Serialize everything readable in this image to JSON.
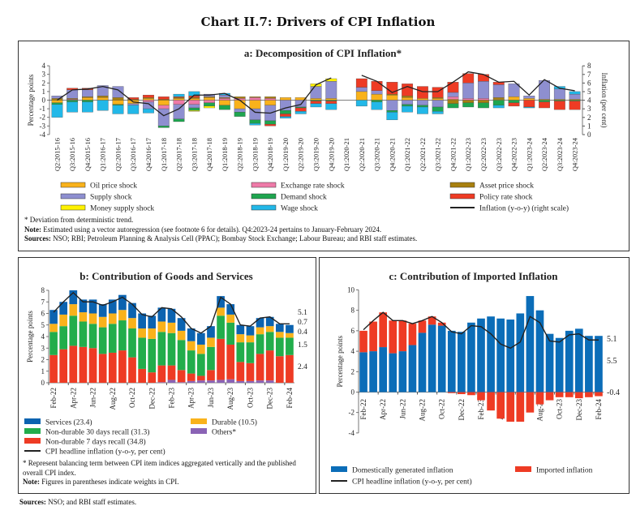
{
  "title": "Chart II.7: Drivers of CPI Inflation",
  "colors": {
    "oil": "#f9b21b",
    "fx": "#ee7aa8",
    "asset": "#a8800f",
    "supply": "#8e8fd0",
    "demand": "#1ea54f",
    "policy": "#ee3b24",
    "money": "#fff200",
    "wage": "#22b8e8",
    "services": "#0b63b0",
    "nd30": "#22ad4b",
    "nd7": "#ee3b24",
    "durable": "#f9b21b",
    "others": "#8a63b5",
    "domestic": "#0b6db8",
    "imported": "#ee3b24",
    "line": "#222222"
  },
  "chart_data": [
    {
      "type": "bar",
      "title": "a: Decomposition of CPI Inflation*",
      "ylabel": "Percentage points",
      "y2label": "Inflation (per cent)",
      "ylim": [
        -4,
        4
      ],
      "y2lim": [
        0,
        8
      ],
      "categories": [
        "Q2:2015-16",
        "Q3:2015-16",
        "Q4:2015-16",
        "Q1:2016-17",
        "Q2:2016-17",
        "Q3:2016-17",
        "Q4:2016-17",
        "Q1:2017-18",
        "Q2:2017-18",
        "Q3:2017-18",
        "Q4:2017-18",
        "Q1:2018-19",
        "Q2:2018-19",
        "Q3:2018-19",
        "Q4:2018-19",
        "Q1:2019-20",
        "Q2:2019-20",
        "Q3:2019-20",
        "Q4:2019-20",
        "Q1:2020-21",
        "Q2:2020-21",
        "Q3:2020-21",
        "Q4:2020-21",
        "Q1:2021-22",
        "Q2:2021-22",
        "Q3:2021-22",
        "Q4:2021-22",
        "Q1:2022-23",
        "Q2:2022-23",
        "Q3:2022-23",
        "Q4:2022-23",
        "Q1:2023-24",
        "Q2:2023-24",
        "Q3:2023-24",
        "Q4:2023-24"
      ],
      "series_keys": [
        "oil",
        "fx",
        "asset",
        "supply",
        "demand",
        "policy",
        "money",
        "wage"
      ],
      "legend": [
        {
          "key": "oil",
          "label": "Oil price shock"
        },
        {
          "key": "fx",
          "label": "Exchange rate shock"
        },
        {
          "key": "asset",
          "label": "Asset price shock"
        },
        {
          "key": "supply",
          "label": "Supply shock"
        },
        {
          "key": "demand",
          "label": "Demand shock"
        },
        {
          "key": "policy",
          "label": "Policy rate shock"
        },
        {
          "key": "money",
          "label": "Money supply shock"
        },
        {
          "key": "wage",
          "label": "Wage shock"
        },
        {
          "key": "line",
          "label": "Inflation (y-o-y) (right scale)"
        }
      ],
      "values": [
        [
          -0.3,
          0,
          0.2,
          0.3,
          -0.2,
          0,
          0,
          -1.5
        ],
        [
          0,
          0.1,
          0.1,
          1.0,
          -0.2,
          0.2,
          0,
          -1.2
        ],
        [
          0.3,
          0,
          0.1,
          0.8,
          -0.2,
          0.2,
          0,
          -1.2
        ],
        [
          0.3,
          0,
          0.2,
          1.2,
          0,
          0,
          0,
          -1.2
        ],
        [
          -0.5,
          0,
          0.3,
          1.3,
          -0.1,
          0,
          0,
          -1.0
        ],
        [
          -0.4,
          0,
          0.1,
          -0.2,
          0,
          0.2,
          0,
          -1.0
        ],
        [
          0.2,
          -0.2,
          0.1,
          -0.8,
          0,
          0.3,
          0,
          -0.5
        ],
        [
          -0.6,
          -0.4,
          0.1,
          -2.0,
          -0.2,
          0.3,
          0,
          0
        ],
        [
          0.2,
          -0.5,
          0.1,
          -1.7,
          -0.3,
          0.1,
          0,
          0.3
        ],
        [
          0.2,
          -0.5,
          0.1,
          -0.4,
          -0.3,
          0.2,
          -0.1,
          0.5
        ],
        [
          0.3,
          -0.3,
          0.1,
          0.3,
          -0.4,
          0,
          -0.2,
          0
        ],
        [
          -0.6,
          0.2,
          0.1,
          0.3,
          -0.5,
          0,
          0,
          0.2
        ],
        [
          -1.0,
          0.2,
          0.2,
          -0.4,
          -0.5,
          0,
          0,
          0
        ],
        [
          -1.0,
          0.3,
          0.1,
          -1.3,
          -0.4,
          0,
          0,
          -0.2
        ],
        [
          -0.6,
          0.2,
          0.2,
          -1.8,
          -0.4,
          -0.2,
          0,
          0
        ],
        [
          0.3,
          0,
          0,
          -1.2,
          -0.4,
          -0.3,
          0,
          -0.2
        ],
        [
          0.3,
          0,
          0,
          -0.8,
          -0.1,
          -0.4,
          0,
          -0.3
        ],
        [
          0.2,
          0,
          0,
          1.4,
          -0.1,
          -0.3,
          0.3,
          -0.4
        ],
        [
          0.2,
          0,
          0,
          2.0,
          -0.1,
          -0.3,
          0.3,
          -0.7
        ],
        null,
        [
          1.0,
          0,
          0,
          0.5,
          0,
          1.0,
          0,
          -0.7
        ],
        [
          0.7,
          0,
          0,
          0.4,
          -0.2,
          1.1,
          0,
          -0.9
        ],
        [
          0.6,
          0,
          0.1,
          -1.2,
          -0.2,
          1.4,
          0,
          -0.9
        ],
        [
          0.3,
          0,
          0.2,
          -0.5,
          -0.2,
          1.4,
          0,
          -0.7
        ],
        [
          0.2,
          0,
          0,
          -0.6,
          -0.2,
          1.4,
          0,
          -0.8
        ],
        [
          0.2,
          0,
          0.1,
          -0.8,
          -0.5,
          1.2,
          0,
          -0.3
        ],
        [
          0.1,
          0.3,
          -0.4,
          0.5,
          -0.5,
          1.2,
          0,
          0
        ],
        [
          0,
          0.2,
          -0.3,
          1.8,
          -0.5,
          1.1,
          0,
          0
        ],
        [
          0,
          0.2,
          -0.3,
          2.0,
          -0.6,
          0.8,
          0,
          0
        ],
        [
          0.1,
          0,
          0.2,
          1.5,
          -0.6,
          0.3,
          0,
          -0.3
        ],
        [
          0.4,
          0,
          0,
          1.5,
          -0.3,
          -0.4,
          0,
          0
        ],
        [
          0.2,
          0,
          0,
          0.3,
          0,
          -0.8,
          0,
          -0.1
        ],
        [
          0.1,
          0,
          0,
          2.2,
          -0.2,
          -0.7,
          0,
          0
        ],
        [
          0.1,
          0,
          0,
          1.2,
          -0.1,
          -1.0,
          0,
          0.3
        ],
        [
          0.1,
          0,
          0,
          0.6,
          -0.1,
          -1.0,
          0,
          0.3
        ]
      ],
      "inflation": [
        4.0,
        5.2,
        5.3,
        5.6,
        5.2,
        3.8,
        3.6,
        2.2,
        3.0,
        4.6,
        4.6,
        4.8,
        4.0,
        2.6,
        2.5,
        3.1,
        3.5,
        5.8,
        6.6,
        null,
        6.9,
        6.2,
        4.9,
        5.6,
        5.0,
        5.0,
        6.1,
        7.3,
        7.0,
        6.1,
        6.2,
        4.6,
        6.4,
        5.4,
        5.1
      ],
      "notes": [
        "* Deviation from deterministic trend.",
        "Note:",
        "Estimated using a vector autoregression (see footnote 6 for details). Q4:2023-24 pertains to January-February 2024.",
        "Sources:",
        "NSO; RBI; Petroleum Planning & Analysis Cell (PPAC); Bombay Stock Exchange; Labour Bureau; and RBI staff estimates."
      ]
    },
    {
      "type": "bar",
      "title": "b: Contribution of Goods and Services",
      "ylabel": "Percentage points",
      "ylim": [
        0,
        8
      ],
      "categories": [
        "Feb-22",
        "Mar-22",
        "Apr-22",
        "May-22",
        "Jun-22",
        "Jul-22",
        "Aug-22",
        "Sep-22",
        "Oct-22",
        "Nov-22",
        "Dec-22",
        "Jan-23",
        "Feb-23",
        "Mar-23",
        "Apr-23",
        "May-23",
        "Jun-23",
        "Jul-23",
        "Aug-23",
        "Sep-23",
        "Oct-23",
        "Nov-23",
        "Dec-23",
        "Jan-24",
        "Feb-24"
      ],
      "series": [
        {
          "key": "others",
          "name": "Others*",
          "values": [
            0,
            0,
            0,
            0,
            0,
            0,
            0,
            0,
            0,
            0,
            0,
            0.05,
            0.25,
            0.05,
            0.15,
            0.2,
            0.2,
            0.25,
            0.3,
            0.15,
            0.15,
            0.2,
            0.2,
            0,
            0
          ]
        },
        {
          "key": "nd7",
          "name": "Non-durable 7 days recall (34.8)",
          "values": [
            2.4,
            2.9,
            3.2,
            3.1,
            3.0,
            2.5,
            2.6,
            2.8,
            2.2,
            1.2,
            0.9,
            1.45,
            1.25,
            1.05,
            0.65,
            0.4,
            0.9,
            3.55,
            3.0,
            1.65,
            1.55,
            2.3,
            2.6,
            2.3,
            2.4
          ]
        },
        {
          "key": "nd30",
          "name": "Non-durable 30 days recall (31.3)",
          "values": [
            2.0,
            2.0,
            2.6,
            2.2,
            2.1,
            2.3,
            2.5,
            2.6,
            2.5,
            2.7,
            2.9,
            2.9,
            2.8,
            2.6,
            2.0,
            1.9,
            2.0,
            2.0,
            1.9,
            1.7,
            1.8,
            1.7,
            1.6,
            1.6,
            1.5
          ]
        },
        {
          "key": "durable",
          "name": "Durable (10.5)",
          "values": [
            0.7,
            1.0,
            1.0,
            0.8,
            0.9,
            0.9,
            0.9,
            0.9,
            0.9,
            0.8,
            0.9,
            0.9,
            0.9,
            0.8,
            0.8,
            0.8,
            0.8,
            0.7,
            0.7,
            0.7,
            0.6,
            0.6,
            0.5,
            0.5,
            0.4
          ]
        },
        {
          "key": "services",
          "name": "Services (23.4)",
          "values": [
            1.2,
            1.1,
            1.2,
            1.1,
            1.2,
            1.1,
            1.2,
            1.3,
            1.3,
            1.3,
            1.1,
            1.2,
            1.2,
            1.1,
            1.1,
            1.0,
            1.0,
            1.0,
            0.9,
            0.8,
            0.8,
            0.8,
            0.8,
            0.7,
            0.7
          ]
        }
      ],
      "line": {
        "name": "CPI headline inflation (y-o-y, per cent)",
        "values": [
          6.1,
          7.0,
          7.8,
          7.0,
          7.0,
          6.7,
          7.0,
          7.4,
          6.8,
          5.9,
          5.7,
          6.5,
          6.4,
          5.7,
          4.7,
          4.3,
          4.9,
          7.4,
          6.8,
          5.0,
          4.9,
          5.6,
          5.7,
          5.1,
          5.1
        ]
      },
      "end_labels": [
        {
          "key": "line",
          "text": "5.1"
        },
        {
          "key": "services",
          "text": "0.7"
        },
        {
          "key": "durable",
          "text": "0.4"
        },
        {
          "key": "nd30",
          "text": "1.5"
        },
        {
          "key": "nd7",
          "text": "2.4"
        }
      ],
      "xticks": [
        "Feb-22",
        "Apr-22",
        "Jun-22",
        "Aug-22",
        "Oct-22",
        "Dec-22",
        "Feb-23",
        "Apr-23",
        "Jun-23",
        "Aug-23",
        "Oct-23",
        "Dec-23",
        "Feb-24"
      ],
      "notes": [
        "* Represent balancing term between CPI item indices aggregated vertically and the published overall CPI index.",
        "Note:",
        "Figures in parentheses indicate weights in CPI."
      ]
    },
    {
      "type": "bar",
      "title": "c: Contribution of Imported Inflation",
      "ylabel": "Percentage points",
      "ylim": [
        -4,
        10
      ],
      "categories": [
        "Feb-22",
        "Mar-22",
        "Apr-22",
        "May-22",
        "Jun-22",
        "Jul-22",
        "Aug-22",
        "Sep-22",
        "Oct-22",
        "Nov-22",
        "Dec-22",
        "Jan-23",
        "Feb-23",
        "Mar-23",
        "Apr-23",
        "May-23",
        "Jun-23",
        "Jul-23",
        "Aug-23",
        "Sep-23",
        "Oct-23",
        "Nov-23",
        "Dec-23",
        "Jan-24",
        "Feb-24"
      ],
      "series": [
        {
          "key": "domestic",
          "name": "Domestically generated inflation",
          "values": [
            3.9,
            4.0,
            4.4,
            3.8,
            4.0,
            4.6,
            5.8,
            6.6,
            6.5,
            6.0,
            5.9,
            6.8,
            7.2,
            7.4,
            7.2,
            7.1,
            7.7,
            9.4,
            8.0,
            5.7,
            5.3,
            6.0,
            6.2,
            5.5,
            5.5
          ]
        },
        {
          "key": "imported",
          "name": "Imported inflation",
          "values": [
            2.1,
            2.9,
            3.4,
            3.2,
            3.0,
            2.1,
            1.2,
            0.8,
            0.3,
            -0.1,
            -0.2,
            -0.3,
            -0.8,
            -1.8,
            -2.6,
            -2.9,
            -2.9,
            -2.0,
            -1.2,
            -0.8,
            -0.5,
            -0.5,
            -0.6,
            -0.5,
            -0.4
          ]
        }
      ],
      "line": {
        "name": "CPI headline inflation (y-o-y, per cent)",
        "values": [
          6.1,
          7.0,
          7.8,
          7.0,
          7.0,
          6.7,
          7.0,
          7.4,
          6.8,
          5.9,
          5.7,
          6.5,
          6.4,
          5.7,
          4.7,
          4.3,
          4.9,
          7.4,
          6.8,
          5.0,
          4.9,
          5.6,
          5.7,
          5.1,
          5.1
        ]
      },
      "end_labels": [
        {
          "key": "line",
          "text": "5.1"
        },
        {
          "key": "domestic",
          "text": "5.5"
        },
        {
          "key": "imported",
          "text": "-0.4"
        }
      ],
      "xticks": [
        "Feb-22",
        "Apr-22",
        "Jun-22",
        "Aug-22",
        "Oct-22",
        "Dec-22",
        "Feb-23",
        "Apr-23",
        "Jun-23",
        "Aug-23",
        "Oct-23",
        "Dec-23",
        "Feb-24"
      ]
    }
  ],
  "sources": {
    "label": "Sources:",
    "text": "NSO; and RBI staff estimates."
  }
}
